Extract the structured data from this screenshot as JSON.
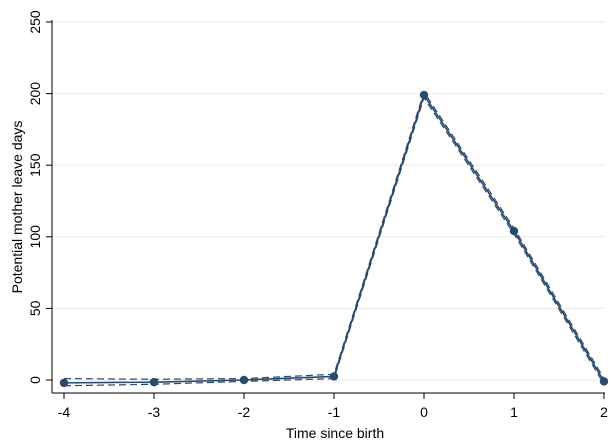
{
  "chart_data": {
    "type": "line",
    "title": "",
    "xlabel": "Time since birth",
    "ylabel": "Potential mother leave days",
    "x": [
      -4,
      -3,
      -2,
      -1,
      0,
      1,
      2
    ],
    "xticks": [
      "-4",
      "-3",
      "-2",
      "-1",
      "0",
      "1",
      "2"
    ],
    "yticks": [
      "0",
      "50",
      "100",
      "150",
      "200",
      "250"
    ],
    "xlim": [
      -4,
      2
    ],
    "ylim": [
      0,
      250
    ],
    "grid": "horizontal",
    "legend": "none",
    "series": [
      {
        "values": [
          -2,
          -1.5,
          0,
          2.5,
          199,
          104,
          -1
        ],
        "ci_lower": [
          -4,
          -3,
          -1,
          1,
          197,
          102,
          -3
        ],
        "ci_upper": [
          1,
          0.5,
          1,
          4,
          201,
          106,
          1
        ],
        "color": "#2b4a6b"
      }
    ]
  }
}
